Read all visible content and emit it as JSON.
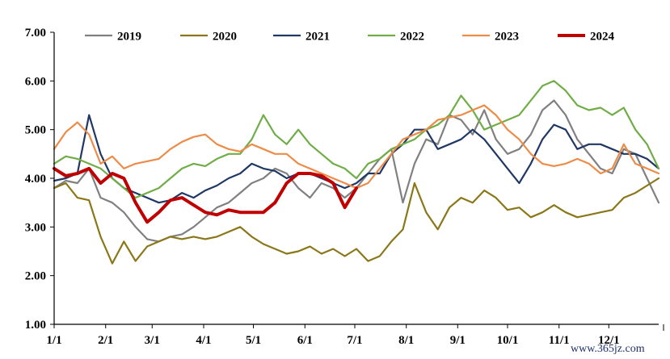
{
  "chart_data": {
    "type": "line",
    "title": "",
    "xlabel": "",
    "ylabel": "",
    "ylim": [
      1.0,
      7.0
    ],
    "y_ticks": [
      "1.00",
      "2.00",
      "3.00",
      "4.00",
      "5.00",
      "6.00",
      "7.00"
    ],
    "x_ticks": [
      "1/1",
      "2/1",
      "3/1",
      "4/1",
      "5/1",
      "6/1",
      "7/1",
      "8/1",
      "9/1",
      "10/1",
      "11/1",
      "12/1"
    ],
    "x_domain_weeks": [
      0,
      52
    ],
    "x_tick_weeks": [
      0,
      4.43,
      8.43,
      12.86,
      17.14,
      21.57,
      25.86,
      30.29,
      34.71,
      39.0,
      43.43,
      47.71
    ],
    "legend_position": "top",
    "series": [
      {
        "name": "2019",
        "color": "#808080",
        "width": 2.2,
        "x": [
          0,
          1,
          2,
          3,
          4,
          5,
          6,
          7,
          8,
          9,
          10,
          11,
          12,
          13,
          14,
          15,
          16,
          17,
          18,
          19,
          20,
          21,
          22,
          23,
          24,
          25,
          26,
          27,
          28,
          29,
          30,
          31,
          32,
          33,
          34,
          35,
          36,
          37,
          38,
          39,
          40,
          41,
          42,
          43,
          44,
          45,
          46,
          47,
          48,
          49,
          50,
          51,
          52
        ],
        "values": [
          3.8,
          3.95,
          3.9,
          4.2,
          3.6,
          3.5,
          3.3,
          3.0,
          2.75,
          2.7,
          2.8,
          2.85,
          3.0,
          3.2,
          3.4,
          3.5,
          3.7,
          3.9,
          4.0,
          4.2,
          4.1,
          3.8,
          3.6,
          3.9,
          3.8,
          3.6,
          3.8,
          4.1,
          4.4,
          4.6,
          3.5,
          4.3,
          4.8,
          4.7,
          5.3,
          5.2,
          4.9,
          5.4,
          4.8,
          4.5,
          4.6,
          4.9,
          5.4,
          5.6,
          5.3,
          4.8,
          4.5,
          4.2,
          4.1,
          4.6,
          4.5,
          4.0,
          3.5
        ]
      },
      {
        "name": "2020",
        "color": "#8b7718",
        "width": 2.2,
        "x": [
          0,
          1,
          2,
          3,
          4,
          5,
          6,
          7,
          8,
          9,
          10,
          11,
          12,
          13,
          14,
          15,
          16,
          17,
          18,
          19,
          20,
          21,
          22,
          23,
          24,
          25,
          26,
          27,
          28,
          29,
          30,
          31,
          32,
          33,
          34,
          35,
          36,
          37,
          38,
          39,
          40,
          41,
          42,
          43,
          44,
          45,
          46,
          47,
          48,
          49,
          50,
          51,
          52
        ],
        "values": [
          3.8,
          3.9,
          3.6,
          3.55,
          2.8,
          2.25,
          2.7,
          2.3,
          2.6,
          2.7,
          2.8,
          2.75,
          2.8,
          2.75,
          2.8,
          2.9,
          3.0,
          2.8,
          2.65,
          2.55,
          2.45,
          2.5,
          2.6,
          2.45,
          2.55,
          2.4,
          2.55,
          2.3,
          2.4,
          2.7,
          2.95,
          3.9,
          3.3,
          2.95,
          3.4,
          3.6,
          3.5,
          3.75,
          3.6,
          3.35,
          3.4,
          3.2,
          3.3,
          3.45,
          3.3,
          3.2,
          3.25,
          3.3,
          3.35,
          3.6,
          3.7,
          3.85,
          4.0
        ]
      },
      {
        "name": "2021",
        "color": "#1f3864",
        "width": 2.2,
        "x": [
          0,
          1,
          2,
          3,
          4,
          5,
          6,
          7,
          8,
          9,
          10,
          11,
          12,
          13,
          14,
          15,
          16,
          17,
          18,
          19,
          20,
          21,
          22,
          23,
          24,
          25,
          26,
          27,
          28,
          29,
          30,
          31,
          32,
          33,
          34,
          35,
          36,
          37,
          38,
          39,
          40,
          41,
          42,
          43,
          44,
          45,
          46,
          47,
          48,
          49,
          50,
          51,
          52
        ],
        "values": [
          3.95,
          4.0,
          4.1,
          5.3,
          4.5,
          4.0,
          3.8,
          3.7,
          3.6,
          3.5,
          3.55,
          3.7,
          3.6,
          3.75,
          3.85,
          4.0,
          4.1,
          4.3,
          4.2,
          4.15,
          4.0,
          4.1,
          4.1,
          4.0,
          3.9,
          3.8,
          3.9,
          4.1,
          4.1,
          4.5,
          4.7,
          5.0,
          5.0,
          4.6,
          4.7,
          4.8,
          5.0,
          4.8,
          4.5,
          4.2,
          3.9,
          4.3,
          4.8,
          5.1,
          5.0,
          4.6,
          4.7,
          4.7,
          4.6,
          4.5,
          4.5,
          4.4,
          4.2
        ]
      },
      {
        "name": "2022",
        "color": "#70ad47",
        "width": 2.2,
        "x": [
          0,
          1,
          2,
          3,
          4,
          5,
          6,
          7,
          8,
          9,
          10,
          11,
          12,
          13,
          14,
          15,
          16,
          17,
          18,
          19,
          20,
          21,
          22,
          23,
          24,
          25,
          26,
          27,
          28,
          29,
          30,
          31,
          32,
          33,
          34,
          35,
          36,
          37,
          38,
          39,
          40,
          41,
          42,
          43,
          44,
          45,
          46,
          47,
          48,
          49,
          50,
          51,
          52
        ],
        "values": [
          4.3,
          4.45,
          4.4,
          4.3,
          4.2,
          4.0,
          3.8,
          3.6,
          3.7,
          3.8,
          4.0,
          4.2,
          4.3,
          4.25,
          4.4,
          4.5,
          4.5,
          4.8,
          5.3,
          4.9,
          4.7,
          5.0,
          4.7,
          4.5,
          4.3,
          4.2,
          4.0,
          4.3,
          4.4,
          4.6,
          4.7,
          4.8,
          5.0,
          5.1,
          5.3,
          5.7,
          5.4,
          5.0,
          5.1,
          5.2,
          5.3,
          5.6,
          5.9,
          6.0,
          5.8,
          5.5,
          5.4,
          5.45,
          5.3,
          5.45,
          5.0,
          4.7,
          4.2
        ]
      },
      {
        "name": "2023",
        "color": "#ed8c48",
        "width": 2.2,
        "x": [
          0,
          1,
          2,
          3,
          4,
          5,
          6,
          7,
          8,
          9,
          10,
          11,
          12,
          13,
          14,
          15,
          16,
          17,
          18,
          19,
          20,
          21,
          22,
          23,
          24,
          25,
          26,
          27,
          28,
          29,
          30,
          31,
          32,
          33,
          34,
          35,
          36,
          37,
          38,
          39,
          40,
          41,
          42,
          43,
          44,
          45,
          46,
          47,
          48,
          49,
          50,
          51,
          52
        ],
        "values": [
          4.6,
          4.95,
          5.15,
          4.9,
          4.3,
          4.45,
          4.2,
          4.3,
          4.35,
          4.4,
          4.6,
          4.75,
          4.85,
          4.9,
          4.7,
          4.6,
          4.55,
          4.7,
          4.6,
          4.5,
          4.5,
          4.3,
          4.2,
          4.1,
          4.0,
          3.9,
          3.8,
          3.9,
          4.2,
          4.5,
          4.8,
          4.9,
          5.0,
          5.2,
          5.25,
          5.3,
          5.4,
          5.5,
          5.3,
          5.0,
          4.8,
          4.5,
          4.3,
          4.25,
          4.3,
          4.4,
          4.3,
          4.1,
          4.2,
          4.7,
          4.3,
          4.2,
          4.1
        ]
      },
      {
        "name": "2024",
        "color": "#c00000",
        "width": 4,
        "x": [
          0,
          1,
          2,
          3,
          4,
          5,
          6,
          7,
          8,
          9,
          10,
          11,
          12,
          13,
          14,
          15,
          16,
          17,
          18,
          19,
          20,
          21,
          22,
          23,
          24,
          25,
          26
        ],
        "values": [
          4.2,
          4.05,
          4.1,
          4.2,
          3.9,
          4.1,
          4.0,
          3.5,
          3.1,
          3.3,
          3.55,
          3.6,
          3.45,
          3.3,
          3.25,
          3.35,
          3.3,
          3.3,
          3.3,
          3.5,
          3.9,
          4.1,
          4.1,
          4.05,
          3.9,
          3.4,
          3.8
        ]
      }
    ]
  },
  "watermark": "www.365jz.com"
}
